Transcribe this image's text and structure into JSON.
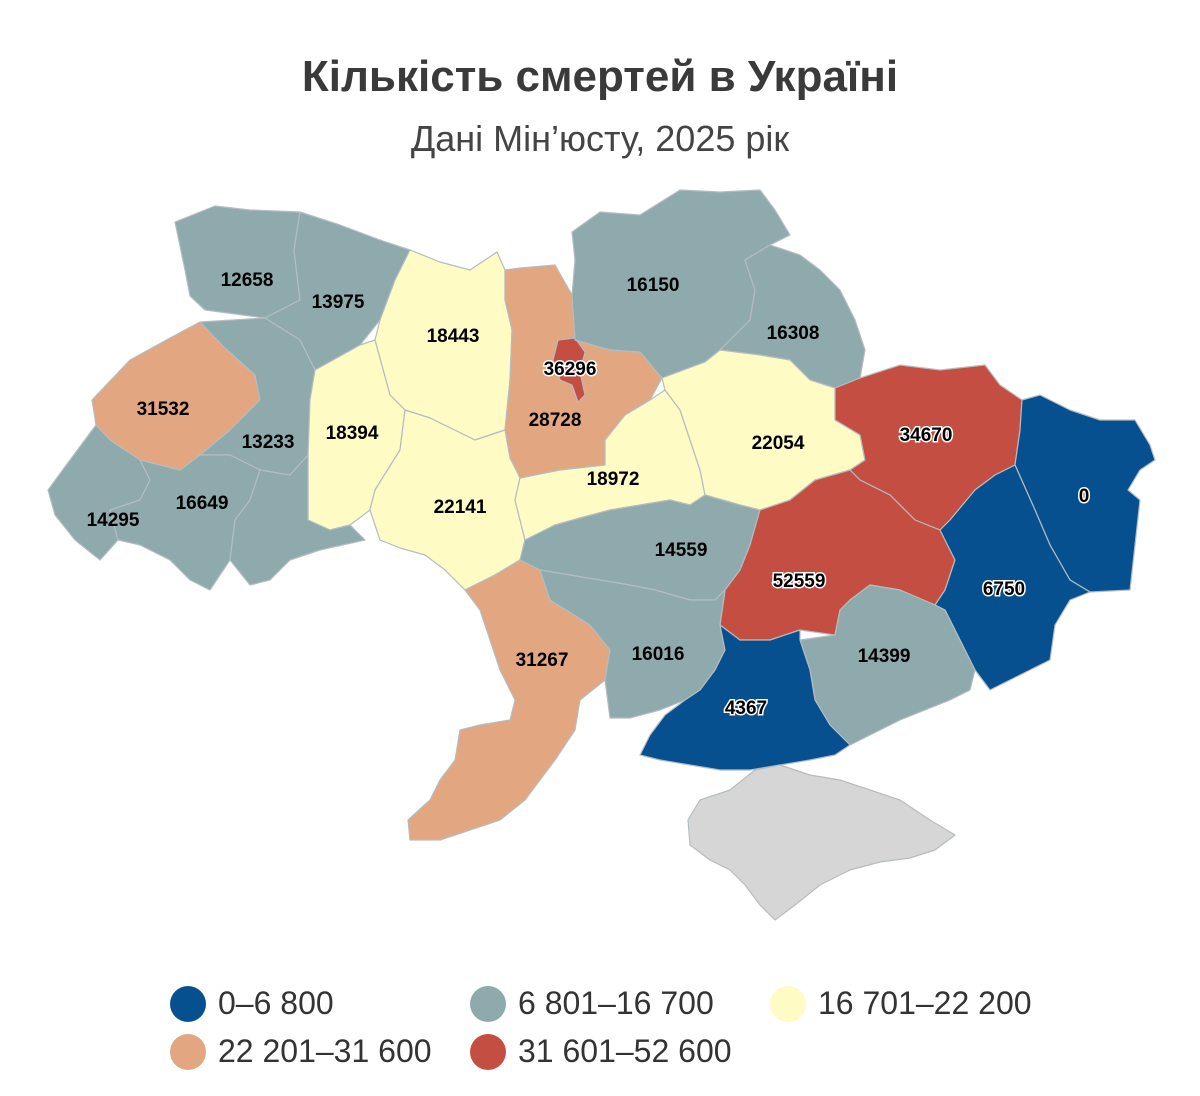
{
  "title": "Кількість смертей в Україні",
  "subtitle": "Дані Мін’юсту, 2025 рік",
  "colors": {
    "c1": "#07508f",
    "c2": "#8eaaad",
    "c3": "#fffbc5",
    "c4": "#e2a681",
    "c5": "#c44e42",
    "crimea": "#d6d6d6"
  },
  "legend": [
    {
      "label": "0–6 800",
      "color_key": "c1"
    },
    {
      "label": "6 801–16 700",
      "color_key": "c2"
    },
    {
      "label": "16 701–22 200",
      "color_key": "c3"
    },
    {
      "label": "22 201–31 600",
      "color_key": "c4"
    },
    {
      "label": "31 601–52 600",
      "color_key": "c5"
    }
  ],
  "regions": [
    {
      "id": "volyn",
      "value": "12658",
      "color_key": "c2"
    },
    {
      "id": "rivne",
      "value": "13975",
      "color_key": "c2"
    },
    {
      "id": "zhytomyr",
      "value": "18443",
      "color_key": "c3"
    },
    {
      "id": "kyiv-oblast",
      "value": "28728",
      "color_key": "c4"
    },
    {
      "id": "kyiv-city",
      "value": "36296",
      "color_key": "c5"
    },
    {
      "id": "chernihiv",
      "value": "16150",
      "color_key": "c2"
    },
    {
      "id": "sumy",
      "value": "16308",
      "color_key": "c2"
    },
    {
      "id": "lviv",
      "value": "31532",
      "color_key": "c4"
    },
    {
      "id": "ternopil",
      "value": "13233",
      "color_key": "c2"
    },
    {
      "id": "khmelnytskyi",
      "value": "18394",
      "color_key": "c3"
    },
    {
      "id": "vinnytsia",
      "value": "22141",
      "color_key": "c3"
    },
    {
      "id": "cherkasy",
      "value": "18972",
      "color_key": "c3"
    },
    {
      "id": "poltava",
      "value": "22054",
      "color_key": "c3"
    },
    {
      "id": "kharkiv",
      "value": "34670",
      "color_key": "c5"
    },
    {
      "id": "luhansk",
      "value": "0",
      "color_key": "c1"
    },
    {
      "id": "zakarpattia",
      "value": "14295",
      "color_key": "c2"
    },
    {
      "id": "ivano-frankivsk",
      "value": "16649",
      "color_key": "c2"
    },
    {
      "id": "chernivtsi",
      "value": "",
      "color_key": "c2"
    },
    {
      "id": "kirovohrad",
      "value": "14559",
      "color_key": "c2"
    },
    {
      "id": "dnipropetrovsk",
      "value": "52559",
      "color_key": "c5"
    },
    {
      "id": "donetsk",
      "value": "6750",
      "color_key": "c1"
    },
    {
      "id": "odesa",
      "value": "31267",
      "color_key": "c4"
    },
    {
      "id": "mykolaiv",
      "value": "16016",
      "color_key": "c2"
    },
    {
      "id": "zaporizhzhia",
      "value": "14399",
      "color_key": "c2"
    },
    {
      "id": "kherson",
      "value": "4367",
      "color_key": "c1"
    },
    {
      "id": "crimea",
      "value": "",
      "color_key": "crimea"
    }
  ]
}
